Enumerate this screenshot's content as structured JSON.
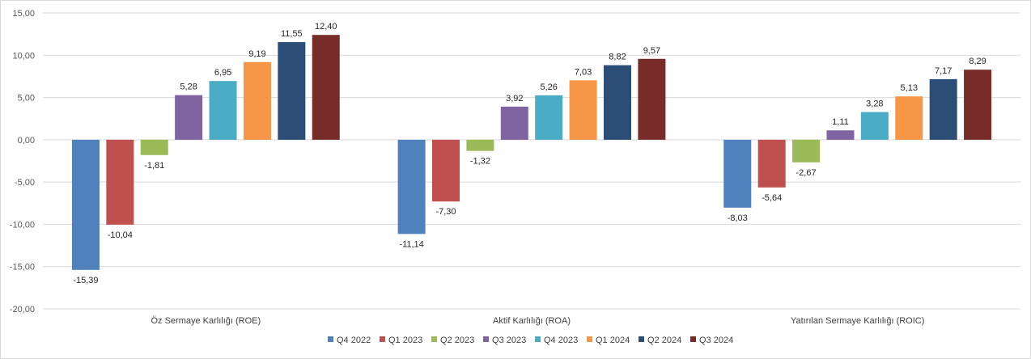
{
  "chart_data": {
    "type": "bar",
    "title": "",
    "xlabel": "",
    "ylabel": "",
    "ylim": [
      -20,
      15
    ],
    "yticks": [
      15,
      10,
      5,
      0,
      -5,
      -10,
      -15,
      -20
    ],
    "ytick_labels": [
      "15,00",
      "10,00",
      "5,00",
      "0,00",
      "-5,00",
      "-10,00",
      "-15,00",
      "-20,00"
    ],
    "grid": true,
    "legend_position": "bottom",
    "categories": [
      "Öz Sermaye Karlılığı (ROE)",
      "Aktif Karlılığı (ROA)",
      "Yatırılan Sermaye Karlılığı (ROIC)"
    ],
    "series": [
      {
        "name": "Q4 2022",
        "color": "#4f81bd",
        "values": [
          -15.39,
          -11.14,
          -8.03
        ],
        "labels": [
          "-15,39",
          "-11,14",
          "-8,03"
        ]
      },
      {
        "name": "Q1 2023",
        "color": "#c0504d",
        "values": [
          -10.04,
          -7.3,
          -5.64
        ],
        "labels": [
          "-10,04",
          "-7,30",
          "-5,64"
        ]
      },
      {
        "name": "Q2 2023",
        "color": "#9bbb59",
        "values": [
          -1.81,
          -1.32,
          -2.67
        ],
        "labels": [
          "-1,81",
          "-1,32",
          "-2,67"
        ]
      },
      {
        "name": "Q3 2023",
        "color": "#8064a2",
        "values": [
          5.28,
          3.92,
          1.11
        ],
        "labels": [
          "5,28",
          "3,92",
          "1,11"
        ]
      },
      {
        "name": "Q4 2023",
        "color": "#4bacc6",
        "values": [
          6.95,
          5.26,
          3.28
        ],
        "labels": [
          "6,95",
          "5,26",
          "3,28"
        ]
      },
      {
        "name": "Q1 2024",
        "color": "#f79646",
        "values": [
          9.19,
          7.03,
          5.13
        ],
        "labels": [
          "9,19",
          "7,03",
          "5,13"
        ]
      },
      {
        "name": "Q2 2024",
        "color": "#2c4d75",
        "values": [
          11.55,
          8.82,
          7.17
        ],
        "labels": [
          "11,55",
          "8,82",
          "7,17"
        ]
      },
      {
        "name": "Q3 2024",
        "color": "#772c2a",
        "values": [
          12.4,
          9.57,
          8.29
        ],
        "labels": [
          "12,40",
          "9,57",
          "8,29"
        ]
      }
    ]
  }
}
